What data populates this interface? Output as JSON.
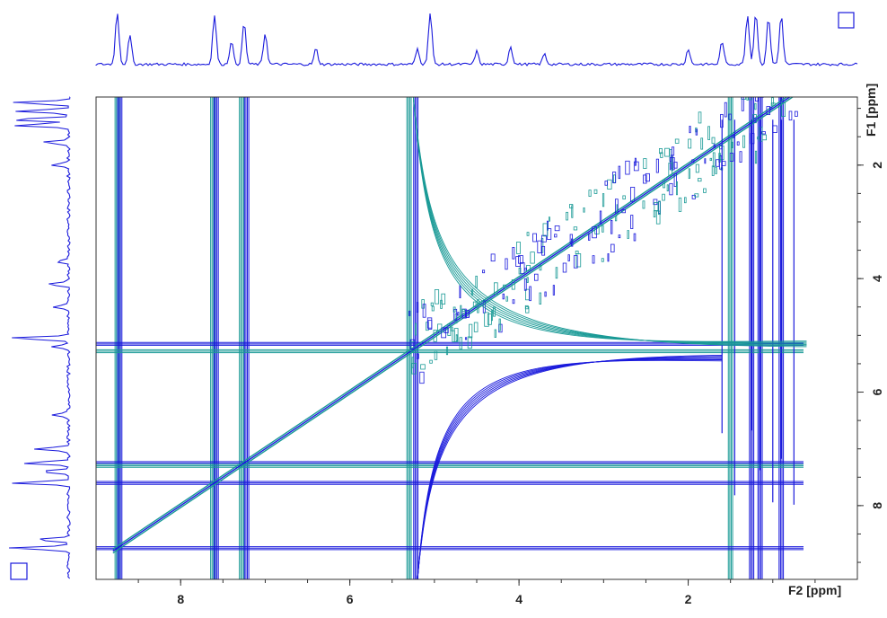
{
  "chart_data": {
    "type": "2d-nmr-contour",
    "title": "",
    "xlabel": "F2 [ppm]",
    "ylabel": "F1 [ppm]",
    "xlim": [
      9.0,
      0.0
    ],
    "ylim": [
      0.0,
      9.0
    ],
    "x_reversed": true,
    "y_reversed": false,
    "x_ticks": [
      {
        "value": 8,
        "label": "8"
      },
      {
        "value": 6,
        "label": "6"
      },
      {
        "value": 4,
        "label": "4"
      },
      {
        "value": 2,
        "label": "2"
      }
    ],
    "y_ticks": [
      {
        "value": 2,
        "label": "2"
      },
      {
        "value": 4,
        "label": "4"
      },
      {
        "value": 6,
        "label": "6"
      },
      {
        "value": 8,
        "label": "8"
      }
    ],
    "grid": false,
    "contour_colors": {
      "positive": "#1a1adc",
      "negative": "#1a9a96"
    },
    "projection_color": "#1a1adc",
    "diagonal": [
      [
        8.8,
        8.8
      ],
      [
        0.4,
        0.4
      ]
    ],
    "vertical_streaks": [
      {
        "x": 8.75,
        "color": "negative"
      },
      {
        "x": 8.72,
        "color": "positive"
      },
      {
        "x": 7.62,
        "color": "negative"
      },
      {
        "x": 7.58,
        "color": "positive"
      },
      {
        "x": 7.28,
        "color": "negative"
      },
      {
        "x": 7.22,
        "color": "positive"
      },
      {
        "x": 5.3,
        "color": "negative"
      },
      {
        "x": 5.22,
        "color": "positive"
      },
      {
        "x": 1.5,
        "color": "negative"
      },
      {
        "x": 1.25,
        "color": "positive"
      },
      {
        "x": 1.15,
        "color": "positive"
      },
      {
        "x": 0.9,
        "color": "positive"
      }
    ],
    "horizontal_streaks": [
      {
        "y": 5.15,
        "color": "positive"
      },
      {
        "y": 5.28,
        "color": "negative"
      },
      {
        "y": 7.25,
        "color": "positive"
      },
      {
        "y": 7.3,
        "color": "negative"
      },
      {
        "y": 7.6,
        "color": "positive"
      },
      {
        "y": 8.75,
        "color": "positive"
      }
    ],
    "projection_peaks": [
      {
        "ppm": 8.75,
        "h": 1.0
      },
      {
        "ppm": 8.6,
        "h": 0.55
      },
      {
        "ppm": 7.6,
        "h": 0.95
      },
      {
        "ppm": 7.4,
        "h": 0.45
      },
      {
        "ppm": 7.25,
        "h": 0.8
      },
      {
        "ppm": 7.0,
        "h": 0.6
      },
      {
        "ppm": 6.4,
        "h": 0.3
      },
      {
        "ppm": 5.2,
        "h": 0.3
      },
      {
        "ppm": 5.05,
        "h": 1.0
      },
      {
        "ppm": 4.5,
        "h": 0.25
      },
      {
        "ppm": 4.1,
        "h": 0.35
      },
      {
        "ppm": 3.7,
        "h": 0.2
      },
      {
        "ppm": 2.0,
        "h": 0.3
      },
      {
        "ppm": 1.6,
        "h": 0.45
      },
      {
        "ppm": 1.3,
        "h": 0.95
      },
      {
        "ppm": 1.2,
        "h": 1.0
      },
      {
        "ppm": 1.05,
        "h": 0.9
      },
      {
        "ppm": 0.9,
        "h": 0.95
      }
    ]
  }
}
